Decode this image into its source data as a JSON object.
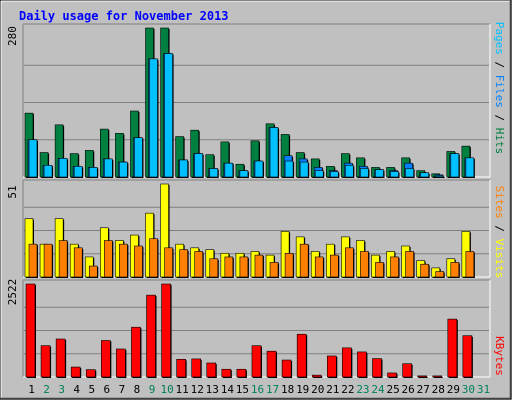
{
  "chart_data": [
    {
      "type": "bar",
      "title": "Daily usage for November 2013",
      "categories": [
        "1",
        "2",
        "3",
        "4",
        "5",
        "6",
        "7",
        "8",
        "9",
        "10",
        "11",
        "12",
        "13",
        "14",
        "15",
        "16",
        "17",
        "18",
        "19",
        "20",
        "21",
        "22",
        "23",
        "24",
        "25",
        "26",
        "27",
        "28",
        "29",
        "30",
        "31"
      ],
      "weekend_days": [
        "2",
        "3",
        "9",
        "10",
        "16",
        "17",
        "23",
        "24",
        "30",
        "31"
      ],
      "ylim": [
        0,
        280
      ],
      "max_label": "280",
      "legend": [
        "Pages",
        "Files",
        "Hits"
      ],
      "series": [
        {
          "name": "Hits",
          "color": "#008040",
          "values": [
            120,
            46,
            98,
            44,
            50,
            90,
            82,
            124,
            280,
            280,
            76,
            88,
            42,
            66,
            24,
            68,
            100,
            80,
            46,
            34,
            20,
            44,
            36,
            18,
            18,
            36,
            12,
            6,
            48,
            58,
            0
          ]
        },
        {
          "name": "Files",
          "color": "#0080ff",
          "values": [
            70,
            22,
            35,
            20,
            18,
            34,
            28,
            74,
            222,
            232,
            32,
            44,
            16,
            26,
            12,
            30,
            93,
            40,
            34,
            18,
            12,
            26,
            20,
            14,
            12,
            26,
            8,
            4,
            44,
            36,
            0
          ]
        },
        {
          "name": "Pages",
          "color": "#00c0ff",
          "values": [
            70,
            22,
            35,
            20,
            18,
            34,
            28,
            74,
            222,
            232,
            32,
            44,
            16,
            26,
            12,
            30,
            93,
            30,
            28,
            12,
            10,
            22,
            16,
            14,
            10,
            16,
            8,
            2,
            44,
            36,
            0
          ]
        }
      ]
    },
    {
      "type": "bar",
      "categories": [
        "1",
        "2",
        "3",
        "4",
        "5",
        "6",
        "7",
        "8",
        "9",
        "10",
        "11",
        "12",
        "13",
        "14",
        "15",
        "16",
        "17",
        "18",
        "19",
        "20",
        "21",
        "22",
        "23",
        "24",
        "25",
        "26",
        "27",
        "28",
        "29",
        "30",
        "31"
      ],
      "ylim": [
        0,
        51
      ],
      "max_label": "51",
      "legend": [
        "Sites",
        "Visits"
      ],
      "series": [
        {
          "name": "Visits",
          "color": "#ffff00",
          "values": [
            32,
            18,
            32,
            18,
            11,
            27,
            20,
            23,
            35,
            51,
            18,
            16,
            15,
            13,
            13,
            14,
            12,
            25,
            22,
            14,
            18,
            22,
            20,
            12,
            14,
            17,
            9,
            5,
            10,
            25,
            0
          ]
        },
        {
          "name": "Sites",
          "color": "#ff8000",
          "values": [
            18,
            18,
            20,
            16,
            6,
            20,
            18,
            17,
            21,
            16,
            15,
            14,
            10,
            11,
            11,
            12,
            8,
            13,
            18,
            11,
            12,
            16,
            14,
            8,
            11,
            14,
            7,
            3,
            8,
            14,
            0
          ]
        }
      ]
    },
    {
      "type": "bar",
      "categories": [
        "1",
        "2",
        "3",
        "4",
        "5",
        "6",
        "7",
        "8",
        "9",
        "10",
        "11",
        "12",
        "13",
        "14",
        "15",
        "16",
        "17",
        "18",
        "19",
        "20",
        "21",
        "22",
        "23",
        "24",
        "25",
        "26",
        "27",
        "28",
        "29",
        "30",
        "31"
      ],
      "ylim": [
        0,
        2522
      ],
      "max_label": "2522",
      "legend": [
        "KBytes"
      ],
      "series": [
        {
          "name": "KBytes",
          "color": "#ff0000",
          "values": [
            2522,
            850,
            1030,
            270,
            200,
            990,
            760,
            1350,
            2220,
            2522,
            480,
            490,
            380,
            210,
            210,
            850,
            700,
            460,
            1160,
            50,
            570,
            790,
            680,
            500,
            110,
            360,
            30,
            30,
            1570,
            1120,
            0
          ]
        }
      ]
    }
  ]
}
